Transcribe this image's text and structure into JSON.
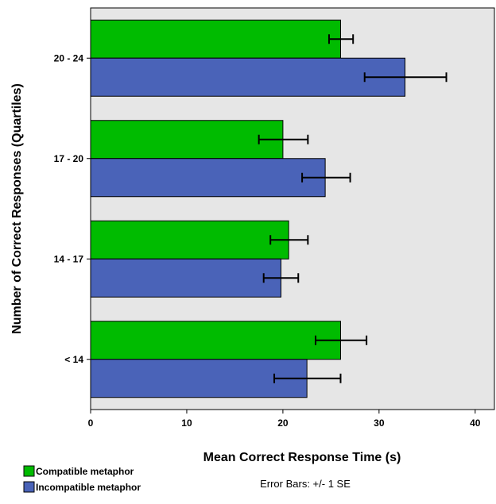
{
  "chart_data": {
    "type": "bar",
    "orientation": "horizontal",
    "title": "",
    "xlabel": "Mean Correct Response Time (s)",
    "ylabel": "Number of Correct Responses (Quartiles)",
    "xlim": [
      0,
      42
    ],
    "xticks": [
      0,
      10,
      20,
      30,
      40
    ],
    "categories": [
      "20 - 24",
      "17 - 20",
      "14 - 17",
      "< 14"
    ],
    "series": [
      {
        "name": "Compatible metaphor",
        "color": "#00bb00",
        "values": [
          26.0,
          20.0,
          20.6,
          26.0
        ],
        "error_low": [
          24.8,
          17.5,
          18.7,
          23.4
        ],
        "error_high": [
          27.3,
          22.6,
          22.6,
          28.7
        ]
      },
      {
        "name": "Incompatible metaphor",
        "color": "#4a63b8",
        "values": [
          32.7,
          24.4,
          19.8,
          22.5
        ],
        "error_low": [
          28.5,
          22.0,
          18.0,
          19.1
        ],
        "error_high": [
          37.0,
          27.0,
          21.6,
          26.0
        ]
      }
    ],
    "grid": false,
    "plot_background": "#e6e6e6",
    "legend_position": "bottom-left",
    "note": "Error Bars: +/- 1 SE"
  }
}
